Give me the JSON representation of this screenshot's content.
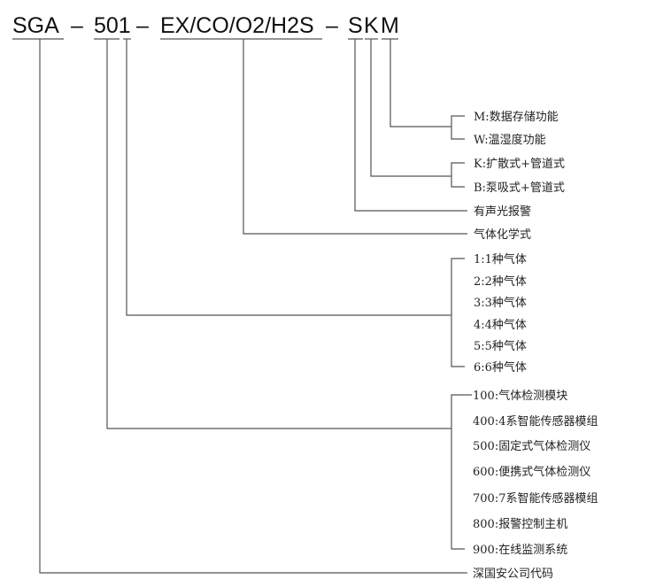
{
  "header": {
    "prefix": "SGA",
    "dash1": "–",
    "model": "501",
    "dash2": "–",
    "gases": "EX/CO/O2/H2S",
    "dash3": "–",
    "alarm": "S",
    "sampling": "K",
    "function": "M"
  },
  "function_options": [
    "M:数据存储功能",
    "W:温湿度功能"
  ],
  "sampling_options": [
    "K:扩散式+管道式",
    "B:泵吸式+管道式"
  ],
  "alarm_label": "有声光报警",
  "gas_label": "气体化学式",
  "gas_count_options": [
    "1:1种气体",
    "2:2种气体",
    "3:3种气体",
    "4:4种气体",
    "5:5种气体",
    "6:6种气体"
  ],
  "series_options": [
    "100:气体检测模块",
    "400:4系智能传感器模组",
    "500:固定式气体检测仪",
    "600:便携式气体检测仪",
    "700:7系智能传感器模组",
    "800:报警控制主机",
    "900:在线监测系统"
  ],
  "company_label": "深国安公司代码"
}
